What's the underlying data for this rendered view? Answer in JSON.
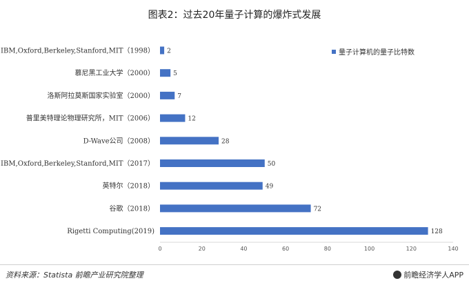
{
  "chart_data": {
    "type": "bar",
    "orientation": "horizontal",
    "title": "图表2：过去20年量子计算的爆炸式发展",
    "categories": [
      "IBM,Oxford,Berkeley,Stanford,MIT（1998）",
      "慕尼黑工业大学（2000）",
      "洛斯阿拉莫斯国家实验室（2000）",
      "普里美特理论物理研究所，MIT（2006）",
      "D-Wave公司（2008）",
      "IBM,Oxford,Berkeley,Stanford,MIT（2017）",
      "英特尔（2018）",
      "谷歌（2018）",
      "Rigetti Computing(2019)"
    ],
    "series": [
      {
        "name": "量子计算机的量子比特数",
        "values": [
          2,
          5,
          7,
          12,
          28,
          50,
          49,
          72,
          128
        ]
      }
    ],
    "xlim": [
      0,
      140
    ],
    "xticks": [
      0,
      20,
      40,
      60,
      80,
      100,
      120,
      140
    ],
    "legend_position": "top-right",
    "grid": false,
    "bar_color": "#4472C4"
  },
  "footer": {
    "source": "资料来源：Statista 前瞻产业研究院整理",
    "brand": "前瞻经济学人APP"
  }
}
